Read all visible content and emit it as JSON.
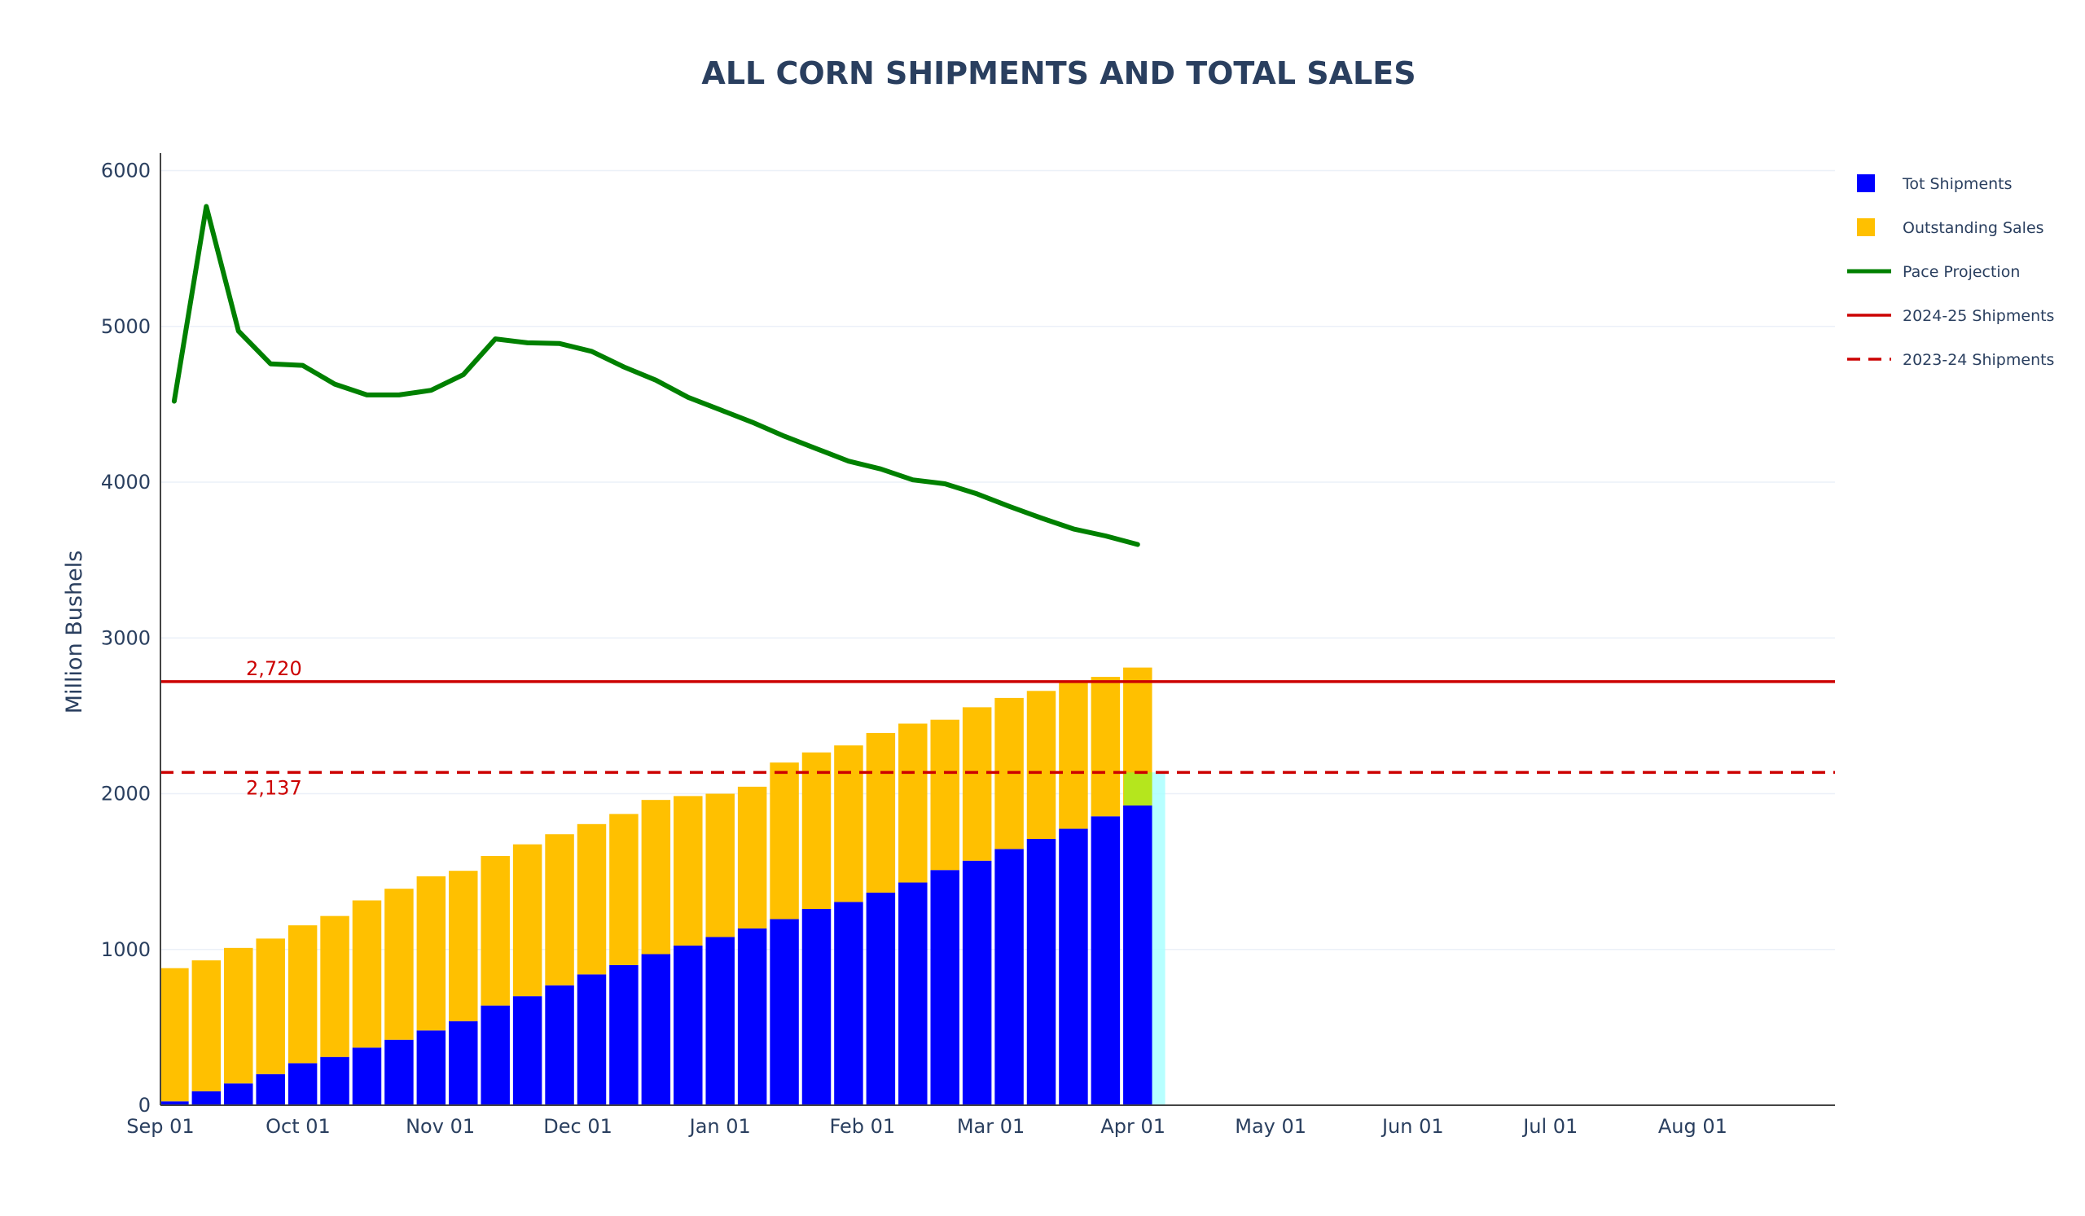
{
  "chart_data": {
    "type": "bar",
    "title": "ALL CORN SHIPMENTS AND TOTAL SALES",
    "xlabel": "",
    "ylabel": "Million Bushels",
    "ylim": [
      0,
      6050
    ],
    "yticks": [
      0,
      1000,
      2000,
      3000,
      4000,
      5000,
      6000
    ],
    "xlim": [
      "2024-09-01",
      "2025-08-31"
    ],
    "xticks": [
      {
        "date": "2024-09-01",
        "label": "Sep 01"
      },
      {
        "date": "2024-10-01",
        "label": "Oct 01"
      },
      {
        "date": "2024-11-01",
        "label": "Nov 01"
      },
      {
        "date": "2024-12-01",
        "label": "Dec 01"
      },
      {
        "date": "2025-01-01",
        "label": "Jan 01"
      },
      {
        "date": "2025-02-01",
        "label": "Feb 01"
      },
      {
        "date": "2025-03-01",
        "label": "Mar 01"
      },
      {
        "date": "2025-04-01",
        "label": "Apr 01"
      },
      {
        "date": "2025-05-01",
        "label": "May 01"
      },
      {
        "date": "2025-06-01",
        "label": "Jun 01"
      },
      {
        "date": "2025-07-01",
        "label": "Jul 01"
      },
      {
        "date": "2025-08-01",
        "label": "Aug 01"
      }
    ],
    "grid": true,
    "legend_position": "right",
    "x": [
      "2024-09-04",
      "2024-09-11",
      "2024-09-18",
      "2024-09-25",
      "2024-10-02",
      "2024-10-09",
      "2024-10-16",
      "2024-10-23",
      "2024-10-30",
      "2024-11-06",
      "2024-11-13",
      "2024-11-20",
      "2024-11-27",
      "2024-12-04",
      "2024-12-11",
      "2024-12-18",
      "2024-12-25",
      "2025-01-01",
      "2025-01-08",
      "2025-01-15",
      "2025-01-22",
      "2025-01-29",
      "2025-02-05",
      "2025-02-12",
      "2025-02-19",
      "2025-02-26",
      "2025-03-05",
      "2025-03-12",
      "2025-03-19",
      "2025-03-26",
      "2025-04-02"
    ],
    "series": [
      {
        "name": "Tot Shipments",
        "type": "bar",
        "color": "#0000ff",
        "values": [
          25,
          90,
          140,
          200,
          270,
          310,
          370,
          420,
          480,
          540,
          640,
          700,
          770,
          840,
          900,
          970,
          1025,
          1080,
          1135,
          1195,
          1260,
          1305,
          1365,
          1430,
          1510,
          1570,
          1645,
          1710,
          1775,
          1855,
          1925
        ]
      },
      {
        "name": "Outstanding Sales",
        "type": "bar",
        "color": "#ffc000",
        "values": [
          855,
          840,
          870,
          870,
          885,
          905,
          945,
          970,
          990,
          965,
          960,
          975,
          970,
          965,
          970,
          990,
          960,
          920,
          910,
          1005,
          1005,
          1005,
          1025,
          1020,
          965,
          985,
          970,
          950,
          945,
          895,
          885
        ]
      },
      {
        "name": "Pace Projection",
        "type": "line",
        "color": "#008000",
        "values": [
          4520,
          5770,
          4970,
          4760,
          4750,
          4630,
          4560,
          4560,
          4590,
          4690,
          4920,
          4895,
          4890,
          4840,
          4740,
          4655,
          4545,
          4465,
          4385,
          4295,
          4215,
          4135,
          4085,
          4015,
          3990,
          3925,
          3845,
          3770,
          3700,
          3655,
          3600
        ]
      }
    ],
    "reference_lines": [
      {
        "name": "2024-25 Shipments",
        "value": 2720,
        "label": "2,720",
        "color": "#cc0000",
        "style": "solid"
      },
      {
        "name": "2023-24 Shipments",
        "value": 2137,
        "label": "2,137",
        "color": "#cc0000",
        "style": "dashed"
      }
    ],
    "highlight_band": {
      "start": "2025-03-30",
      "end": "2025-04-08",
      "ymax": 2137,
      "color": "#aaffff"
    }
  }
}
